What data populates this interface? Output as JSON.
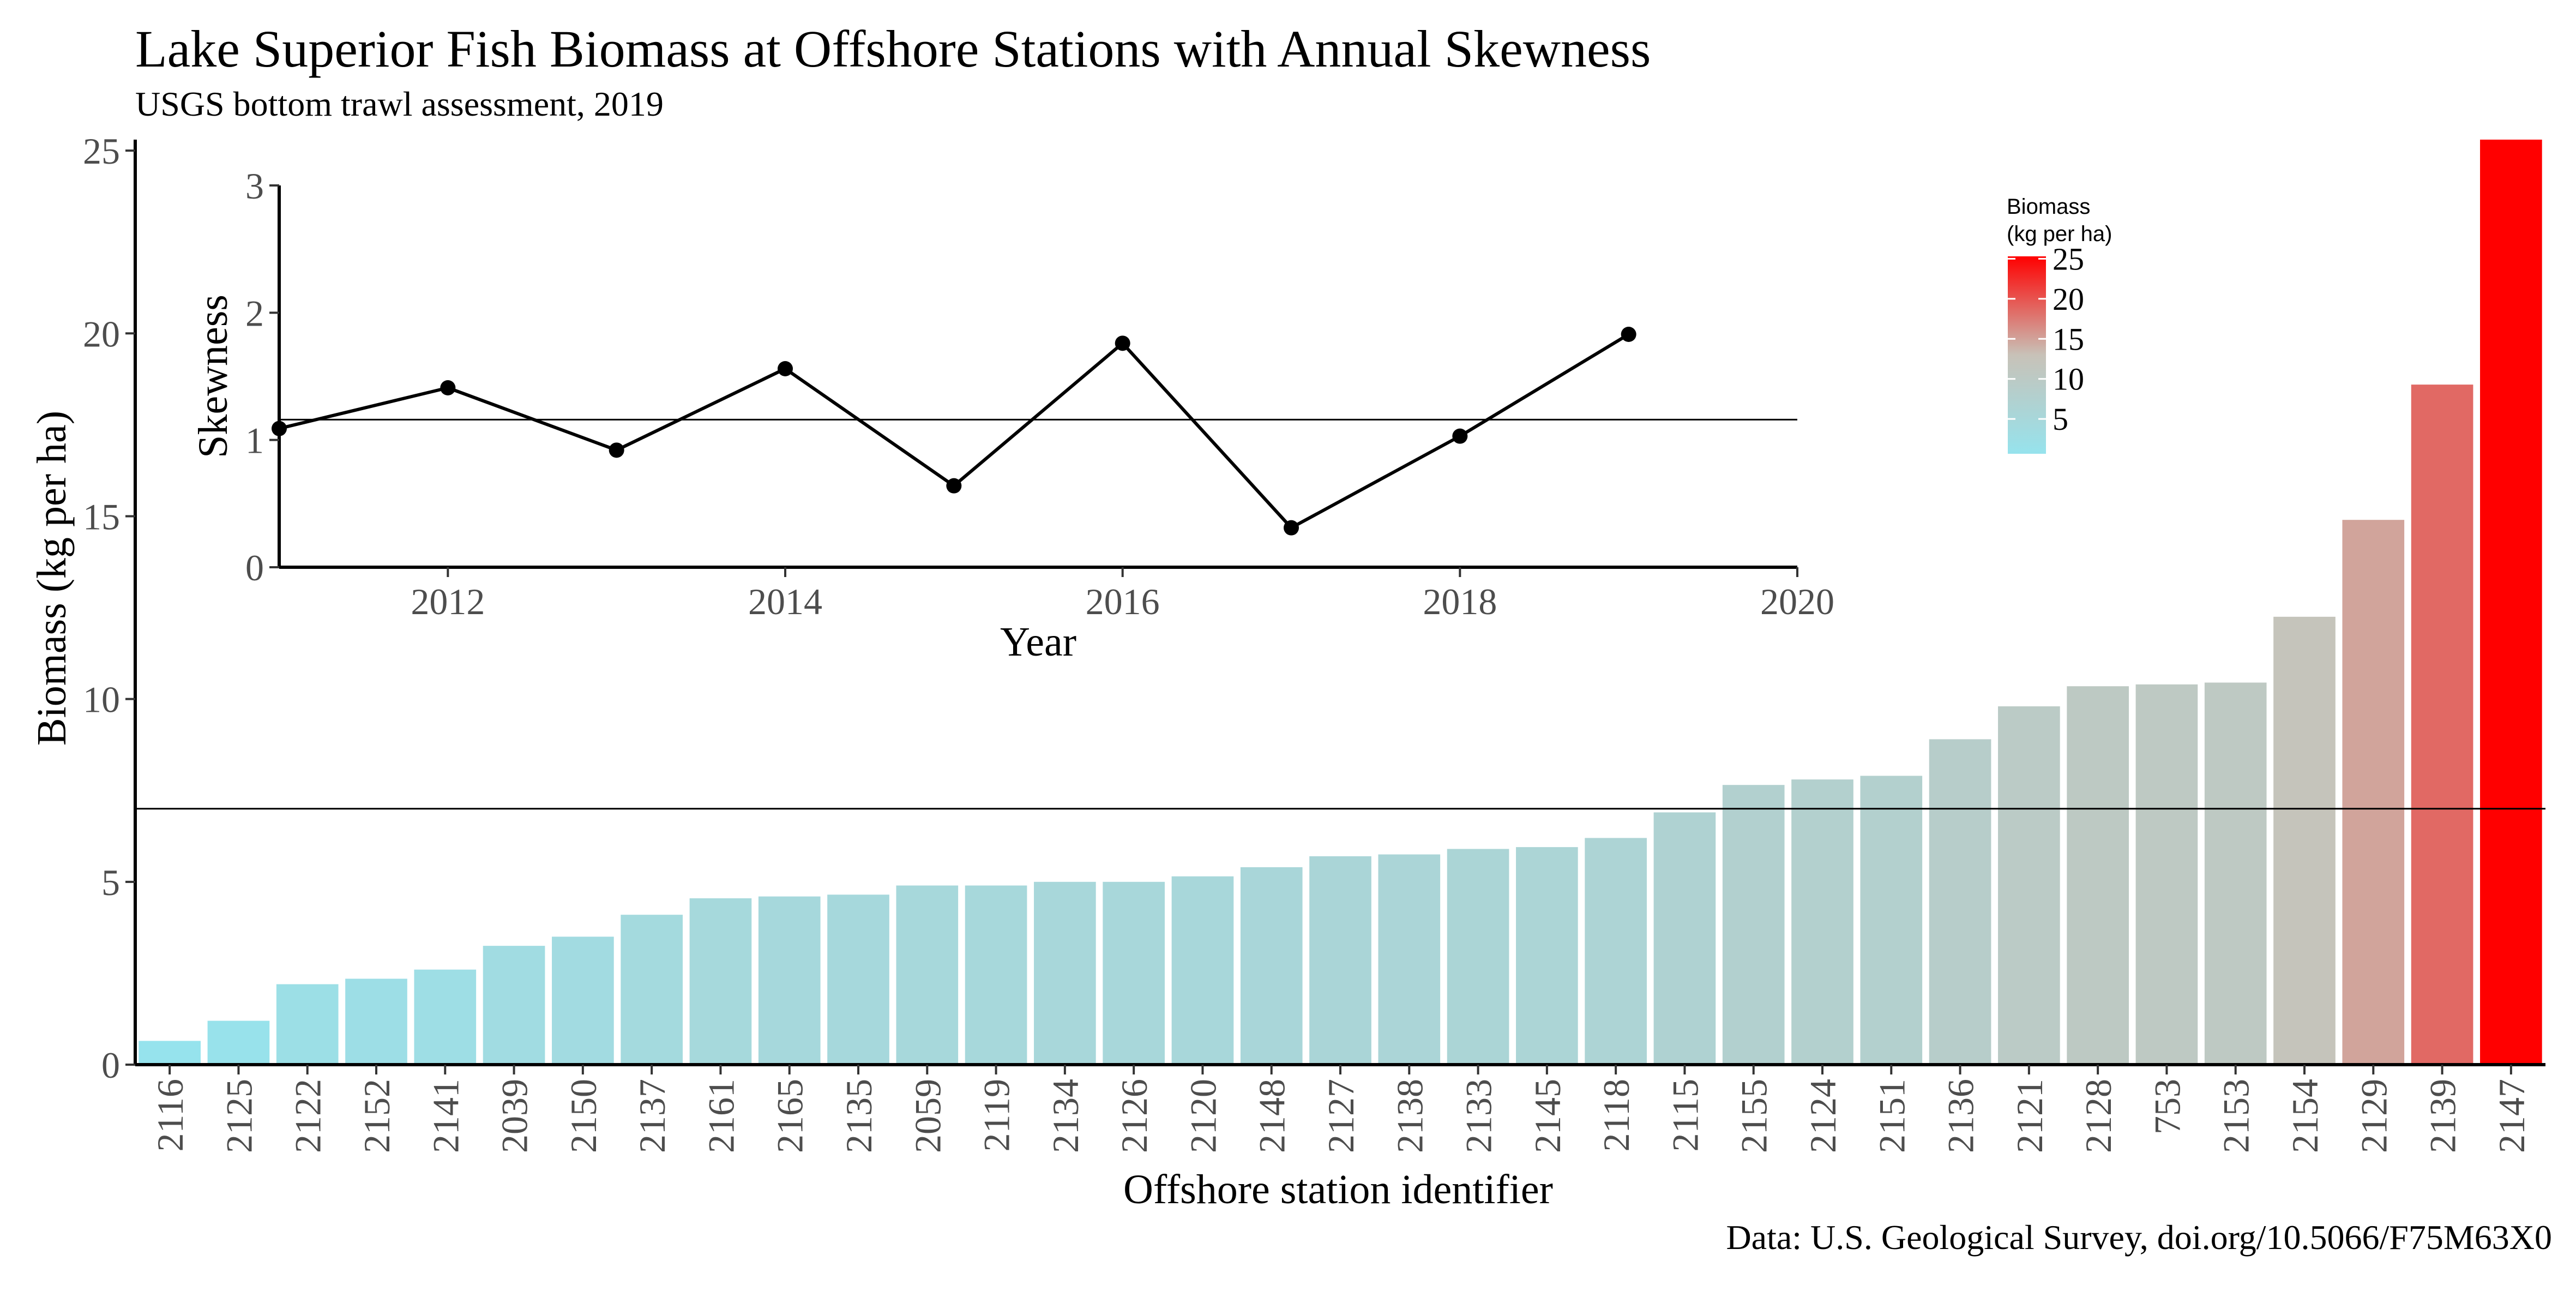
{
  "title": "Lake Superior Fish Biomass at Offshore Stations with Annual Skewness",
  "subtitle": "USGS bottom trawl assessment,  2019",
  "caption": "Data: U.S. Geological Survey, doi.org/10.5066/F75M63X0",
  "colors": {
    "low": "#96e3ed",
    "mid": "#c8c2b8",
    "high": "#ff0000"
  },
  "chart_data": [
    {
      "type": "bar",
      "xlabel": "Offshore station identifier",
      "ylabel": "Biomass (kg per ha)",
      "ylim": [
        0,
        25.3
      ],
      "yticks": [
        0,
        5,
        10,
        15,
        20,
        25
      ],
      "reference_line_y": 7.0,
      "categories": [
        "2116",
        "2125",
        "2122",
        "2152",
        "2141",
        "2039",
        "2150",
        "2137",
        "2161",
        "2165",
        "2135",
        "2059",
        "2119",
        "2134",
        "2126",
        "2120",
        "2148",
        "2127",
        "2138",
        "2133",
        "2145",
        "2118",
        "2115",
        "2155",
        "2124",
        "2151",
        "2136",
        "2121",
        "2128",
        "753",
        "2153",
        "2154",
        "2129",
        "2139",
        "2147"
      ],
      "values": [
        0.65,
        1.2,
        2.2,
        2.35,
        2.6,
        3.25,
        3.5,
        4.1,
        4.55,
        4.6,
        4.65,
        4.9,
        4.9,
        5.0,
        5.0,
        5.15,
        5.4,
        5.7,
        5.75,
        5.9,
        5.95,
        6.2,
        6.9,
        7.65,
        7.8,
        7.9,
        8.9,
        9.8,
        10.35,
        10.4,
        10.45,
        12.25,
        14.9,
        18.6,
        25.3
      ],
      "legend": {
        "title_line1": "Biomass",
        "title_line2": "(kg per ha)",
        "ticks": [
          5,
          10,
          15,
          20,
          25
        ],
        "range": [
          0.65,
          25.3
        ],
        "placement": "top-right"
      }
    },
    {
      "type": "line",
      "xlabel": "Year",
      "ylabel": "Skewness",
      "xlim": [
        2011,
        2020
      ],
      "ylim": [
        0,
        3
      ],
      "xticks": [
        2012,
        2014,
        2016,
        2018,
        2020
      ],
      "yticks": [
        0,
        1,
        2,
        3
      ],
      "reference_line_y": 1.16,
      "x": [
        2011,
        2012,
        2013,
        2014,
        2015,
        2016,
        2017,
        2018,
        2019
      ],
      "y": [
        1.09,
        1.41,
        0.92,
        1.56,
        0.64,
        1.76,
        0.31,
        1.03,
        1.83
      ]
    }
  ]
}
